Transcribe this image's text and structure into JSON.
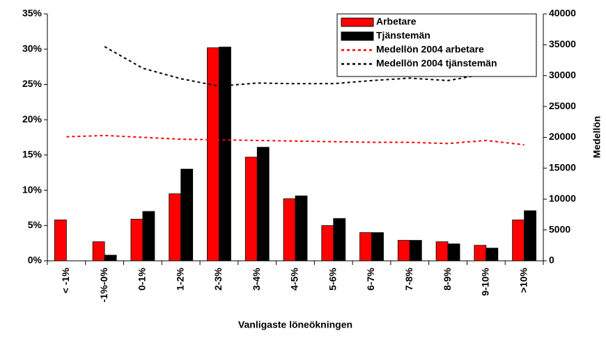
{
  "chart_data": {
    "type": "bar",
    "categories": [
      "< -1%",
      "-1%-0%",
      "0-1%",
      "1-2%",
      "2-3%",
      "3-4%",
      "4-5%",
      "5-6%",
      "6-7%",
      "7-8%",
      "8-9%",
      "9-10%",
      ">10%"
    ],
    "series": [
      {
        "name": "Arbetare",
        "color": "#ff0000",
        "values": [
          5.8,
          2.7,
          5.9,
          9.5,
          30.2,
          14.7,
          8.8,
          5.0,
          4.0,
          2.9,
          2.7,
          2.2,
          5.8
        ]
      },
      {
        "name": "Tjänstemän",
        "color": "#000000",
        "values": [
          null,
          0.8,
          7.0,
          13.0,
          30.3,
          16.1,
          9.2,
          6.0,
          4.0,
          2.9,
          2.4,
          1.8,
          7.1
        ]
      },
      {
        "name": "Medellön 2004 arbetare",
        "type": "line",
        "axis": "y2",
        "color": "#ff0000",
        "values": [
          20100,
          20300,
          20000,
          19700,
          19600,
          19500,
          19400,
          19300,
          19200,
          19200,
          19000,
          19500,
          18800
        ]
      },
      {
        "name": "Medellön 2004 tjänstemän",
        "type": "line",
        "axis": "y2",
        "color": "#000000",
        "values": [
          null,
          34700,
          31200,
          29500,
          28300,
          28800,
          28700,
          28700,
          29200,
          29600,
          29200,
          30300,
          30500
        ]
      }
    ],
    "xlabel": "Vanligaste löneökningen",
    "y2label": "Medellön",
    "ylim": [
      0,
      35
    ],
    "yticks": [
      {
        "value": 0,
        "label": "0%"
      },
      {
        "value": 5,
        "label": "5%"
      },
      {
        "value": 10,
        "label": "10%"
      },
      {
        "value": 15,
        "label": "15%"
      },
      {
        "value": 20,
        "label": "20%"
      },
      {
        "value": 25,
        "label": "25%"
      },
      {
        "value": 30,
        "label": "30%"
      },
      {
        "value": 35,
        "label": "35%"
      }
    ],
    "y2lim": [
      0,
      40000
    ],
    "y2ticks": [
      0,
      5000,
      10000,
      15000,
      20000,
      25000,
      30000,
      35000,
      40000
    ],
    "legend": "upper right"
  }
}
